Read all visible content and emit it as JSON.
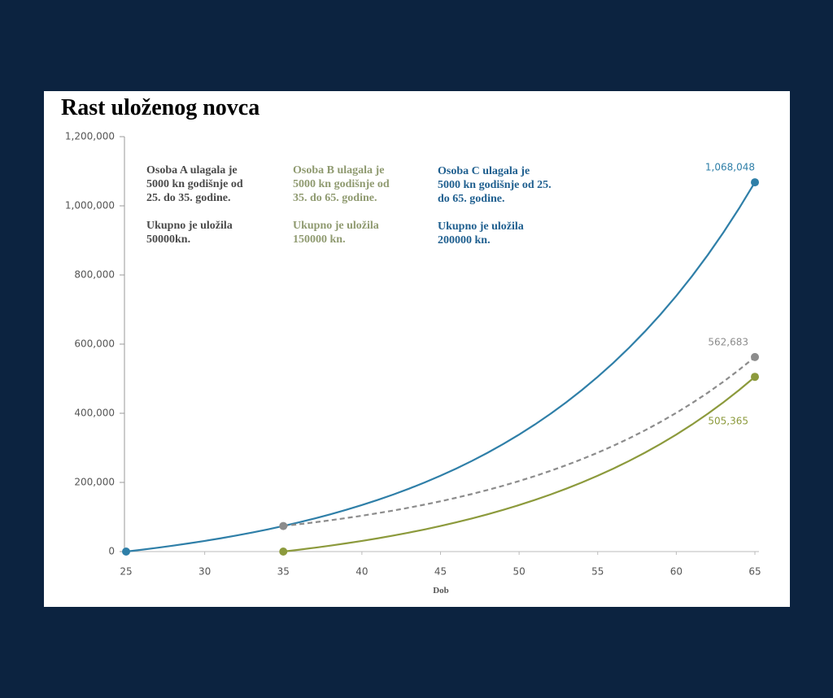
{
  "chart_data": {
    "type": "line",
    "title": "Rast uloženog novca",
    "x_label": "Dob",
    "x": [
      25,
      26,
      27,
      28,
      29,
      30,
      31,
      32,
      33,
      34,
      35,
      36,
      37,
      38,
      39,
      40,
      41,
      42,
      43,
      44,
      45,
      46,
      47,
      48,
      49,
      50,
      51,
      52,
      53,
      54,
      55,
      56,
      57,
      58,
      59,
      60,
      61,
      62,
      63,
      64,
      65
    ],
    "series": [
      {
        "color": "#2f7fa8",
        "dash": false,
        "values": [
          0,
          5350,
          11074,
          17200,
          23754,
          30767,
          38270,
          46299,
          54890,
          64082,
          73918,
          84442,
          95703,
          107753,
          120646,
          134441,
          149202,
          164996,
          181895,
          199978,
          219326,
          240029,
          262181,
          285884,
          311245,
          338382,
          367419,
          398489,
          431733,
          467304,
          505365,
          546091,
          589667,
          636294,
          686184,
          739560,
          796687,
          857805,
          923201,
          993177,
          1068048
        ],
        "value_labels": [
          null,
          null,
          null,
          null,
          null,
          null,
          null,
          null,
          null,
          null,
          null,
          null,
          null,
          null,
          null,
          null,
          null,
          null,
          null,
          null,
          null,
          null,
          null,
          null,
          null,
          null,
          null,
          null,
          null,
          null,
          null,
          null,
          null,
          null,
          null,
          null,
          null,
          null,
          null,
          null,
          "1,068,048"
        ]
      },
      {
        "color": "#8c8c8c",
        "dash": true,
        "values": [
          null,
          null,
          null,
          null,
          null,
          null,
          null,
          null,
          null,
          null,
          73918,
          79092,
          84629,
          90553,
          96891,
          103674,
          110931,
          118696,
          127005,
          135895,
          145408,
          155586,
          166477,
          178130,
          190600,
          203942,
          218218,
          233493,
          249838,
          267326,
          286039,
          306062,
          327486,
          350410,
          374939,
          401185,
          429268,
          459316,
          491469,
          525871,
          562683
        ],
        "value_labels": [
          null,
          null,
          null,
          null,
          null,
          null,
          null,
          null,
          null,
          null,
          null,
          null,
          null,
          null,
          null,
          null,
          null,
          null,
          null,
          null,
          null,
          null,
          null,
          null,
          null,
          null,
          null,
          null,
          null,
          null,
          null,
          null,
          null,
          null,
          null,
          null,
          null,
          null,
          null,
          null,
          "562,683"
        ]
      },
      {
        "color": "#8c9a3c",
        "dash": false,
        "values": [
          null,
          null,
          null,
          null,
          null,
          null,
          null,
          null,
          null,
          null,
          0,
          5350,
          11074,
          17200,
          23754,
          30767,
          38270,
          46299,
          54890,
          64082,
          73918,
          84442,
          95703,
          107753,
          120646,
          134441,
          149202,
          164996,
          181895,
          199978,
          219326,
          240029,
          262181,
          285884,
          311245,
          338382,
          367419,
          398489,
          431733,
          467304,
          505365
        ],
        "value_labels": [
          null,
          null,
          null,
          null,
          null,
          null,
          null,
          null,
          null,
          null,
          null,
          null,
          null,
          null,
          null,
          null,
          null,
          null,
          null,
          null,
          null,
          null,
          null,
          null,
          null,
          null,
          null,
          null,
          null,
          null,
          null,
          null,
          null,
          null,
          null,
          null,
          null,
          null,
          null,
          null,
          "505,365"
        ]
      }
    ],
    "annotations": [
      {
        "color": "#4a4a4a",
        "lines": [
          "Osoba A ulagala je",
          "5000 kn godišnje od",
          "25. do 35. godine.",
          "",
          "Ukupno je uložila",
          "50000kn."
        ]
      },
      {
        "color": "#8f9a70",
        "lines": [
          "Osoba B ulagala je",
          "5000 kn godišnje od",
          "35. do 65. godine.",
          "",
          "Ukupno je uložila",
          "150000 kn."
        ]
      },
      {
        "color": "#1f5f8f",
        "lines": [
          "Osoba C ulagala je",
          "5000 kn godišnje od 25.",
          "do 65. godine.",
          "",
          "Ukupno je uložila",
          "200000 kn."
        ]
      }
    ],
    "xlim": [
      25,
      65
    ],
    "xticks": [
      25,
      30,
      35,
      40,
      45,
      50,
      55,
      60,
      65
    ],
    "ylim": [
      0,
      1200000
    ],
    "yticks": [
      0,
      {
        "value": 200000,
        "label": "200,000"
      },
      {
        "value": 400000,
        "label": "400,000"
      },
      {
        "value": 600000,
        "label": "600,000"
      },
      {
        "value": 800000,
        "label": "800,000"
      },
      {
        "value": 1000000,
        "label": "1,000,000"
      },
      {
        "value": 1200000,
        "label": "1,200,000"
      }
    ]
  }
}
